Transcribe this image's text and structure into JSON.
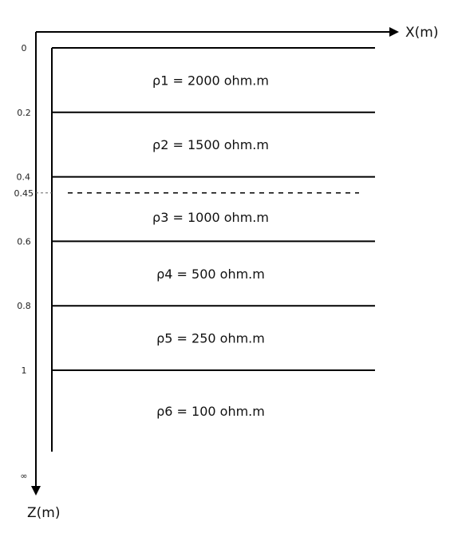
{
  "axes": {
    "x_label": "X(m)",
    "z_label": "Z(m)"
  },
  "depth_ticks": [
    {
      "value": 0,
      "label": "0"
    },
    {
      "value": 0.2,
      "label": "0.2"
    },
    {
      "value": 0.4,
      "label": "0.4"
    },
    {
      "value": 0.45,
      "label": "0.45"
    },
    {
      "value": 0.6,
      "label": "0.6"
    },
    {
      "value": 0.8,
      "label": "0.8"
    },
    {
      "value": 1,
      "label": "1"
    }
  ],
  "infinity_label": "∞",
  "boundaries": [
    0,
    0.2,
    0.4,
    0.6,
    0.8,
    1
  ],
  "dashed_boundary": 0.45,
  "layers": [
    {
      "label": "ρ1 = 2000 ohm.m",
      "top": 0,
      "bottom": 0.2
    },
    {
      "label": "ρ2 = 1500 ohm.m",
      "top": 0.2,
      "bottom": 0.4
    },
    {
      "label": "ρ3 = 1000 ohm.m",
      "top": 0.45,
      "bottom": 0.6
    },
    {
      "label": "ρ4 = 500 ohm.m",
      "top": 0.6,
      "bottom": 0.8
    },
    {
      "label": "ρ5 = 250 ohm.m",
      "top": 0.8,
      "bottom": 1
    },
    {
      "label": "ρ6 = 100 ohm.m",
      "top": 1,
      "bottom": null
    }
  ]
}
